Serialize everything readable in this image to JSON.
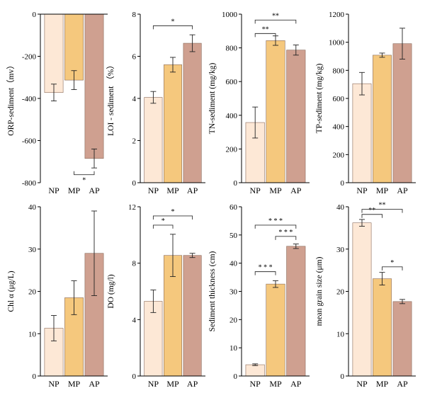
{
  "colors": {
    "NP": "#fde8d6",
    "MP": "#f5c87d",
    "AP": "#cfa090",
    "axis": "#000000",
    "bar_edge": "#8a6a5a"
  },
  "chart_data": [
    {
      "type": "bar",
      "categories": [
        "NP",
        "MP",
        "AP"
      ],
      "values": [
        -372,
        -313,
        -685
      ],
      "errors": [
        40,
        45,
        45
      ],
      "ylabel": "ORP-sediment（mv）",
      "ylim": [
        -800,
        0
      ],
      "yticks": [
        0,
        -200,
        -400,
        -600,
        -800
      ],
      "ytick_labels": [
        "0",
        "-200",
        "-400",
        "-600",
        "-800"
      ],
      "significance": [
        {
          "from": 1,
          "to": 2,
          "label": "*",
          "level": -762
        }
      ]
    },
    {
      "type": "bar",
      "categories": [
        "NP",
        "MP",
        "AP"
      ],
      "values": [
        4.05,
        5.6,
        6.62
      ],
      "errors": [
        0.28,
        0.35,
        0.4
      ],
      "ylabel": "LOI - sediment （%）",
      "ylim": [
        0,
        8
      ],
      "yticks": [
        0,
        2,
        4,
        6,
        8
      ],
      "ytick_labels": [
        "0",
        "2",
        "4",
        "6",
        "8"
      ],
      "significance": [
        {
          "from": 0,
          "to": 2,
          "label": "*",
          "level": 7.45
        }
      ]
    },
    {
      "type": "bar",
      "categories": [
        "NP",
        "MP",
        "AP"
      ],
      "values": [
        357,
        843,
        787
      ],
      "errors": [
        92,
        28,
        30
      ],
      "ylabel": "TN-sediment (mg/kg)",
      "ylim": [
        0,
        1000
      ],
      "yticks": [
        0,
        200,
        400,
        600,
        800,
        1000
      ],
      "ytick_labels": [
        "0",
        "200",
        "400",
        "600",
        "800",
        "1000"
      ],
      "significance": [
        {
          "from": 0,
          "to": 1,
          "label": "**",
          "level": 885
        },
        {
          "from": 0,
          "to": 2,
          "label": "**",
          "level": 965
        }
      ]
    },
    {
      "type": "bar",
      "categories": [
        "NP",
        "MP",
        "AP"
      ],
      "values": [
        705,
        908,
        990
      ],
      "errors": [
        80,
        15,
        110
      ],
      "ylabel": "TP-sediment (mg/kg)",
      "ylim": [
        0,
        1200
      ],
      "yticks": [
        0,
        200,
        400,
        600,
        800,
        1000,
        1200
      ],
      "ytick_labels": [
        "0",
        "200",
        "400",
        "600",
        "800",
        "1000",
        "1200"
      ],
      "significance": []
    },
    {
      "type": "bar",
      "categories": [
        "NP",
        "MP",
        "AP"
      ],
      "values": [
        11.3,
        18.5,
        29
      ],
      "errors": [
        3.0,
        4.0,
        10.0
      ],
      "ylabel": "Chl α (μg/L)",
      "ylim": [
        0,
        40
      ],
      "yticks": [
        0,
        10,
        20,
        30,
        40
      ],
      "ytick_labels": [
        "0",
        "10",
        "20",
        "30",
        "40"
      ],
      "significance": []
    },
    {
      "type": "bar",
      "categories": [
        "NP",
        "MP",
        "AP"
      ],
      "values": [
        5.3,
        8.55,
        8.55
      ],
      "errors": [
        0.8,
        1.5,
        0.15
      ],
      "ylabel": "DO (mg/l)",
      "ylim": [
        0,
        12
      ],
      "yticks": [
        0,
        4,
        8,
        12
      ],
      "ytick_labels": [
        "0",
        "4",
        "8",
        "12"
      ],
      "significance": [
        {
          "from": 0,
          "to": 1,
          "label": "*",
          "level": 10.7
        },
        {
          "from": 0,
          "to": 2,
          "label": "*",
          "level": 11.35
        }
      ]
    },
    {
      "type": "bar",
      "categories": [
        "NP",
        "MP",
        "AP"
      ],
      "values": [
        4,
        32.6,
        46
      ],
      "errors": [
        0.3,
        1.2,
        0.8
      ],
      "ylabel": "Sediment thickness (cm)",
      "ylim": [
        0,
        60
      ],
      "yticks": [
        0,
        10,
        20,
        30,
        40,
        50,
        60
      ],
      "ytick_labels": [
        "0",
        "10",
        "20",
        "30",
        "40",
        "50",
        "60"
      ],
      "significance": [
        {
          "from": 0,
          "to": 1,
          "label": "* * *",
          "level": 37
        },
        {
          "from": 1,
          "to": 2,
          "label": "* * *",
          "level": 49.5
        },
        {
          "from": 0,
          "to": 2,
          "label": "* * *",
          "level": 53.5
        }
      ]
    },
    {
      "type": "bar",
      "categories": [
        "NP",
        "MP",
        "AP"
      ],
      "values": [
        36.2,
        23,
        17.6
      ],
      "errors": [
        0.8,
        1.5,
        0.5
      ],
      "ylabel": "mean grain size (μm)",
      "ylim": [
        0,
        40
      ],
      "yticks": [
        0,
        10,
        20,
        30,
        40
      ],
      "ytick_labels": [
        "0",
        "10",
        "20",
        "30",
        "40"
      ],
      "significance": [
        {
          "from": 0,
          "to": 1,
          "label": "**",
          "level": 38.2
        },
        {
          "from": 0,
          "to": 2,
          "label": "**",
          "level": 39.4
        },
        {
          "from": 1,
          "to": 2,
          "label": "*",
          "level": 25.8
        }
      ]
    }
  ]
}
